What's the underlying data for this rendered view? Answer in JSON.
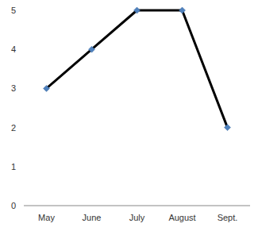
{
  "chart_data": {
    "type": "line",
    "categories": [
      "May",
      "June",
      "July",
      "August",
      "Sept."
    ],
    "values": [
      3,
      4,
      5,
      5,
      2
    ],
    "color": "#000000",
    "marker": "diamond",
    "line_style": "solid",
    "ylim": [
      0,
      5
    ],
    "yticks": [
      0,
      1,
      2,
      3,
      4,
      5
    ],
    "grid": false
  }
}
